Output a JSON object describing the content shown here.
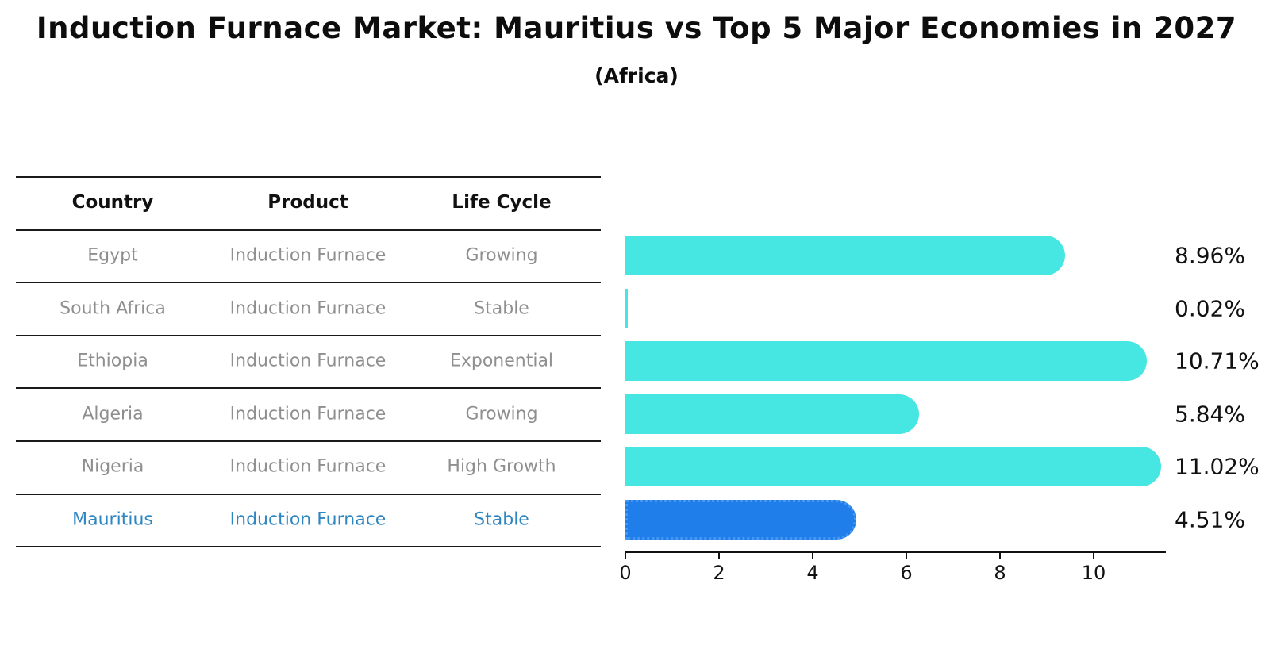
{
  "title": "Induction Furnace Market: Mauritius vs Top 5 Major Economies in 2027",
  "subtitle": "(Africa)",
  "table": {
    "headers": [
      "Country",
      "Product",
      "Life Cycle"
    ],
    "rows": [
      {
        "country": "Egypt",
        "product": "Induction Furnace",
        "life_cycle": "Growing",
        "highlighted": false
      },
      {
        "country": "South Africa",
        "product": "Induction Furnace",
        "life_cycle": "Stable",
        "highlighted": false
      },
      {
        "country": "Ethiopia",
        "product": "Induction Furnace",
        "life_cycle": "Exponential",
        "highlighted": false
      },
      {
        "country": "Algeria",
        "product": "Induction Furnace",
        "life_cycle": "Growing",
        "highlighted": false
      },
      {
        "country": "Nigeria",
        "product": "Induction Furnace",
        "life_cycle": "High Growth",
        "highlighted": false
      },
      {
        "country": "Mauritius",
        "product": "Induction Furnace",
        "life_cycle": "Stable",
        "highlighted": true
      }
    ]
  },
  "chart_data": {
    "type": "bar",
    "orientation": "horizontal",
    "title": "Induction Furnace Market: Mauritius vs Top 5 Major Economies in 2027 (Africa)",
    "categories": [
      "Egypt",
      "South Africa",
      "Ethiopia",
      "Algeria",
      "Nigeria",
      "Mauritius"
    ],
    "values": [
      8.96,
      0.02,
      10.71,
      5.84,
      11.02,
      4.51
    ],
    "value_labels": [
      "8.96%",
      "0.02%",
      "10.71%",
      "5.84%",
      "11.02%",
      "4.51%"
    ],
    "xlabel": "",
    "ylabel": "",
    "xticks": [
      "0",
      "2",
      "4",
      "6",
      "8",
      "10"
    ],
    "xlim": [
      0,
      11.5
    ],
    "grid": false,
    "legend": false,
    "highlight_index": 5,
    "colors": {
      "bar": "#46E7E2",
      "highlight_bar": "#207EEA",
      "highlight_border": "#4597F2",
      "highlight_text": "#2E86C1",
      "row_text": "#8F8F8F",
      "axis": "#111111"
    }
  }
}
